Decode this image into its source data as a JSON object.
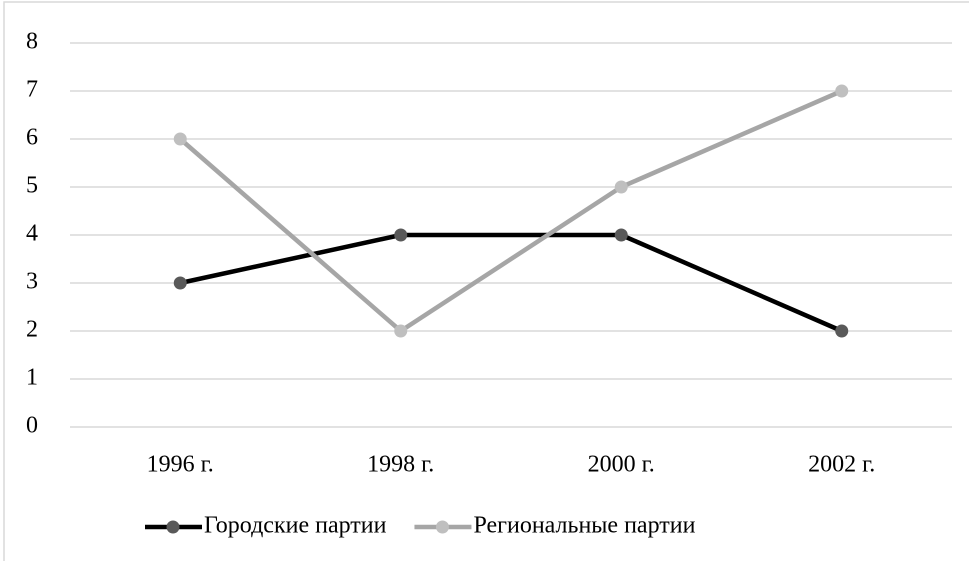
{
  "chart_data": {
    "type": "line",
    "categories": [
      "1996 г.",
      "1998 г.",
      "2000 г.",
      "2002 г."
    ],
    "series": [
      {
        "name": "Городские партии",
        "color": "#000000",
        "marker_color": "#595959",
        "values": [
          3,
          4,
          4,
          2
        ]
      },
      {
        "name": "Региональные партии",
        "color": "#a6a6a6",
        "marker_color": "#bfbfbf",
        "values": [
          6,
          2,
          5,
          7
        ]
      }
    ],
    "ylim": [
      0,
      8
    ],
    "yticks": [
      0,
      1,
      2,
      3,
      4,
      5,
      6,
      7,
      8
    ],
    "grid": true,
    "legend": "bottom"
  }
}
